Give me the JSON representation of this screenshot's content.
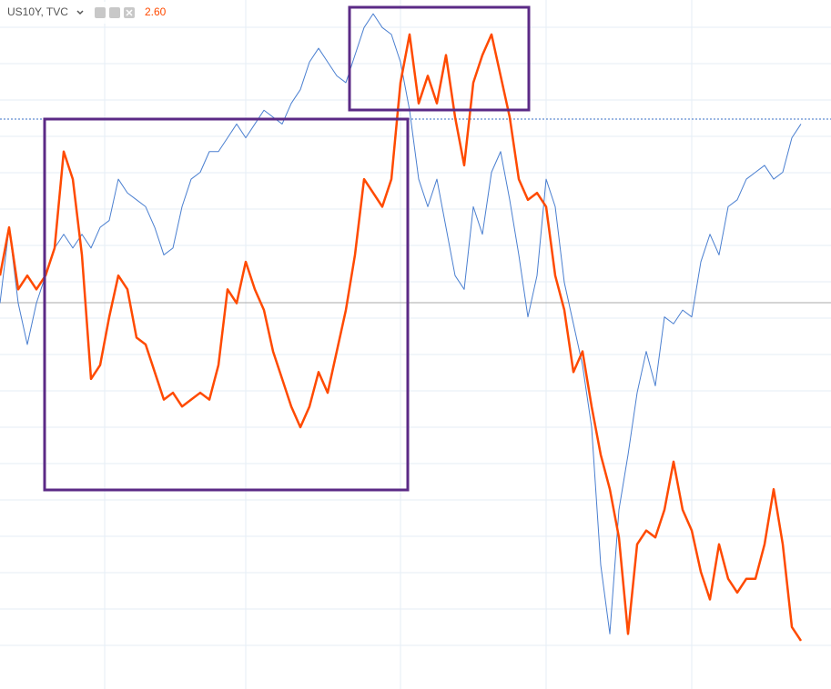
{
  "chart_data": {
    "type": "line",
    "title": "US10Y, TVC",
    "subtitle": "2.60",
    "ylim": [
      0,
      100
    ],
    "series": [
      {
        "color": "#4a7fd0",
        "values": [
          56,
          67,
          56,
          50,
          56,
          60,
          64,
          66,
          64,
          66,
          64,
          67,
          68,
          74,
          72,
          71,
          70,
          67,
          63,
          64,
          70,
          74,
          75,
          78,
          78,
          80,
          82,
          80,
          82,
          84,
          83,
          82,
          85,
          87,
          91,
          93,
          91,
          89,
          88,
          92,
          96,
          98,
          96,
          95,
          91,
          84,
          74,
          70,
          74,
          67,
          60,
          58,
          70,
          66,
          75,
          78,
          71,
          63,
          54,
          60,
          74,
          70,
          59,
          53,
          47,
          38,
          18,
          8,
          26,
          34,
          43,
          49,
          44,
          54,
          53,
          55,
          54,
          62,
          66,
          63,
          70,
          71,
          74,
          75,
          76,
          74,
          75,
          80,
          82
        ]
      },
      {
        "color": "#ff4a00",
        "values": [
          60,
          67,
          58,
          60,
          58,
          60,
          64,
          78,
          74,
          63,
          45,
          47,
          54,
          60,
          58,
          51,
          50,
          46,
          42,
          43,
          41,
          42,
          43,
          42,
          47,
          58,
          56,
          62,
          58,
          55,
          49,
          45,
          41,
          38,
          41,
          46,
          43,
          49,
          55,
          63,
          74,
          72,
          70,
          74,
          88,
          95,
          85,
          89,
          85,
          92,
          83,
          76,
          88,
          92,
          95,
          89,
          83,
          74,
          71,
          72,
          70,
          60,
          55,
          46,
          49,
          41,
          34,
          29,
          22,
          8,
          21,
          23,
          22,
          26,
          33,
          26,
          23,
          17,
          13,
          21,
          16,
          14,
          16,
          16,
          21,
          29,
          21,
          9,
          7
        ]
      }
    ]
  }
}
